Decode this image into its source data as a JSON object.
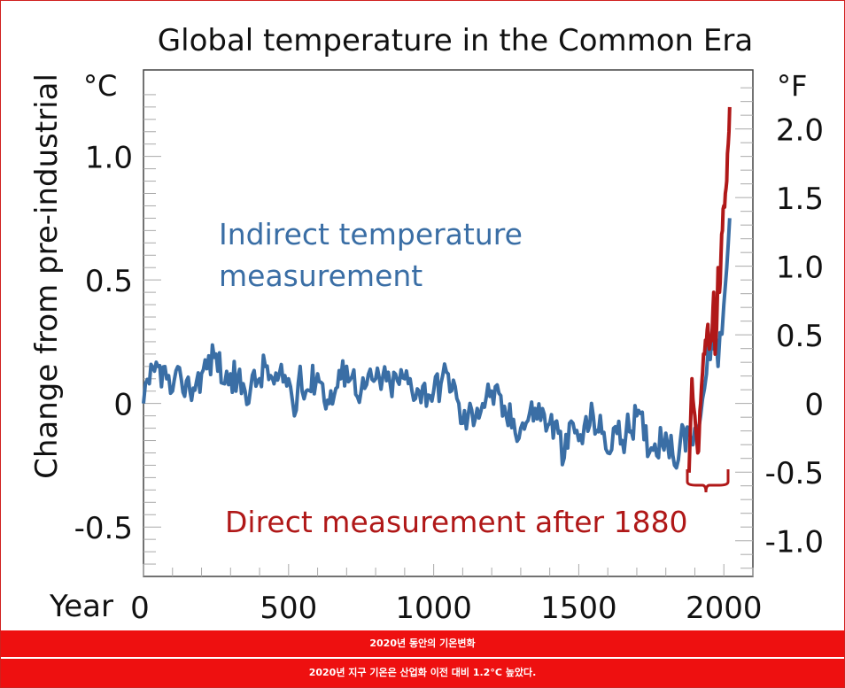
{
  "chart_data": {
    "type": "line",
    "title": "Global temperature in the Common Era",
    "ylabel": "Change from pre-industrial",
    "y_unit_left": "°C",
    "y_unit_right": "°F",
    "xlabel": "Year",
    "x_ticks": [
      "0",
      "500",
      "1000",
      "1500",
      "2000"
    ],
    "y_ticks_left": [
      "1.0",
      "0.5",
      "0",
      "-0.5"
    ],
    "y_ticks_right": [
      "2.0",
      "1.5",
      "1.0",
      "0.5",
      "0",
      "-0.5",
      "-1.0"
    ],
    "xlim": [
      0,
      2100
    ],
    "ylim": [
      -0.7,
      1.35
    ],
    "grid": false,
    "series": [
      {
        "name": "Indirect temperature measurement",
        "color": "#3a6ea5",
        "x": [
          0,
          20,
          50,
          80,
          100,
          130,
          160,
          200,
          250,
          280,
          300,
          350,
          400,
          420,
          450,
          500,
          520,
          540,
          560,
          600,
          640,
          680,
          700,
          750,
          800,
          850,
          900,
          950,
          1000,
          1050,
          1080,
          1100,
          1150,
          1200,
          1250,
          1300,
          1350,
          1400,
          1430,
          1450,
          1480,
          1500,
          1550,
          1580,
          1600,
          1620,
          1650,
          1700,
          1750,
          1800,
          1830,
          1850,
          1880,
          1900,
          1920,
          1940,
          1960,
          1980,
          2000,
          2010,
          2020
        ],
        "y": [
          0.0,
          0.08,
          0.15,
          0.1,
          0.05,
          0.1,
          0.05,
          0.12,
          0.2,
          0.08,
          0.12,
          0.05,
          0.1,
          0.15,
          0.08,
          0.1,
          -0.05,
          0.15,
          0.05,
          0.12,
          0.0,
          0.1,
          0.15,
          0.05,
          0.1,
          0.08,
          0.1,
          0.05,
          0.05,
          0.12,
          0.02,
          -0.08,
          -0.02,
          0.05,
          -0.05,
          -0.1,
          -0.02,
          -0.08,
          -0.12,
          -0.22,
          -0.08,
          -0.15,
          -0.05,
          -0.12,
          -0.2,
          -0.1,
          -0.15,
          -0.05,
          -0.18,
          -0.12,
          -0.25,
          -0.15,
          -0.12,
          -0.1,
          -0.05,
          0.12,
          0.3,
          0.15,
          0.4,
          0.55,
          0.75
        ]
      },
      {
        "name": "Direct measurement after 1880",
        "color": "#b01818",
        "x": [
          1880,
          1890,
          1900,
          1910,
          1915,
          1920,
          1930,
          1940,
          1945,
          1950,
          1960,
          1965,
          1970,
          1975,
          1980,
          1985,
          1990,
          1995,
          2000,
          2005,
          2010,
          2015,
          2020
        ],
        "y": [
          -0.28,
          0.1,
          -0.05,
          -0.2,
          -0.12,
          0.0,
          0.2,
          0.25,
          0.32,
          0.22,
          0.3,
          0.45,
          0.2,
          0.3,
          0.55,
          0.45,
          0.6,
          0.7,
          0.8,
          0.85,
          0.9,
          1.05,
          1.2
        ]
      }
    ],
    "annotations": {
      "indirect_line1": "Indirect temperature",
      "indirect_line2": "measurement",
      "direct": "Direct measurement after 1880"
    }
  },
  "banners": {
    "line1": "2020년 동안의 기온변화",
    "line2": "2020년 지구 기온은 산업화 이전 대비 1.2°C 높았다."
  }
}
